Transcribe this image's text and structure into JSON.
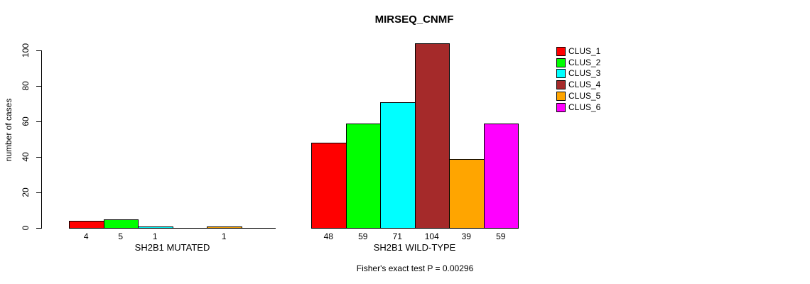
{
  "chart_data": {
    "type": "bar",
    "title": "MIRSEQ_CNMF",
    "ylabel": "number of cases",
    "ylim": [
      0,
      104
    ],
    "yticks": [
      0,
      20,
      40,
      60,
      80,
      100
    ],
    "grid": false,
    "legend_position": "right",
    "categories": [
      "CLUS_1",
      "CLUS_2",
      "CLUS_3",
      "CLUS_4",
      "CLUS_5",
      "CLUS_6"
    ],
    "colors": [
      "#FF0000",
      "#00FF00",
      "#00FFFF",
      "#A52A2A",
      "#FFA500",
      "#FF00FF"
    ],
    "groups": [
      {
        "label": "SH2B1 MUTATED",
        "values": [
          4,
          5,
          1,
          0,
          1,
          0
        ],
        "bar_labels": [
          "4",
          "5",
          "1",
          "",
          "1",
          ""
        ]
      },
      {
        "label": "SH2B1 WILD-TYPE",
        "values": [
          48,
          59,
          71,
          104,
          39,
          59
        ],
        "bar_labels": [
          "48",
          "59",
          "71",
          "104",
          "39",
          "59"
        ]
      }
    ],
    "annotation": "Fisher's exact test P = 0.00296"
  }
}
